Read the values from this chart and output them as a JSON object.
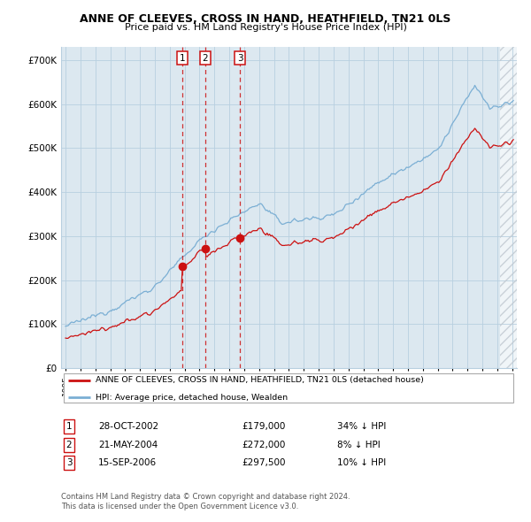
{
  "title": "ANNE OF CLEEVES, CROSS IN HAND, HEATHFIELD, TN21 0LS",
  "subtitle": "Price paid vs. HM Land Registry's House Price Index (HPI)",
  "ylabel_ticks": [
    "£0",
    "£100K",
    "£200K",
    "£300K",
    "£400K",
    "£500K",
    "£600K",
    "£700K"
  ],
  "ytick_vals": [
    0,
    100000,
    200000,
    300000,
    400000,
    500000,
    600000,
    700000
  ],
  "ylim": [
    0,
    730000
  ],
  "xlim_start": 1994.7,
  "xlim_end": 2025.3,
  "hpi_color": "#7bafd4",
  "sale_color": "#cc1111",
  "chart_bg": "#dce8f0",
  "background_color": "#ffffff",
  "grid_color": "#b8cfe0",
  "hatch_color": "#c0c8d0",
  "transactions": [
    {
      "num": 1,
      "date": "28-OCT-2002",
      "price": 179000,
      "pct": "34%",
      "year": 2002.83
    },
    {
      "num": 2,
      "date": "21-MAY-2004",
      "price": 272000,
      "pct": "8%",
      "year": 2004.37
    },
    {
      "num": 3,
      "date": "15-SEP-2006",
      "price": 297500,
      "pct": "10%",
      "year": 2006.71
    }
  ],
  "legend_label_red": "ANNE OF CLEEVES, CROSS IN HAND, HEATHFIELD, TN21 0LS (detached house)",
  "legend_label_blue": "HPI: Average price, detached house, Wealden",
  "footer1": "Contains HM Land Registry data © Crown copyright and database right 2024.",
  "footer2": "This data is licensed under the Open Government Licence v3.0.",
  "hatch_start": 2024.17
}
